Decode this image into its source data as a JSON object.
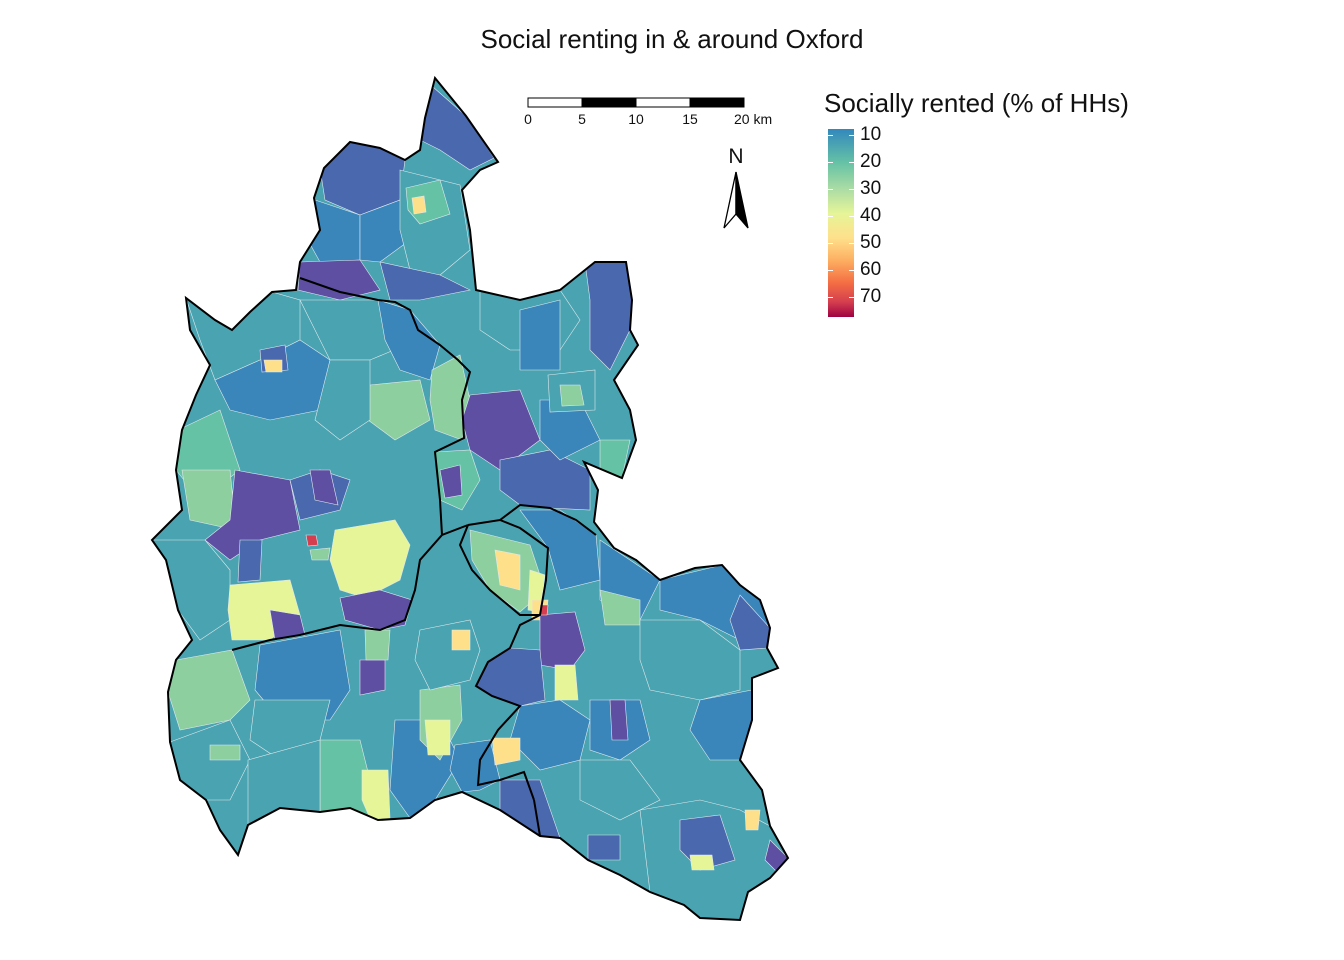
{
  "title": "Social renting in & around Oxford",
  "legend": {
    "title": "Socially rented (% of HHs)",
    "breaks": [
      "10",
      "20",
      "30",
      "40",
      "50",
      "60",
      "70"
    ],
    "palette": [
      "#3288bd",
      "#66c2a5",
      "#abdda4",
      "#e6f598",
      "#fee08b",
      "#fdae61",
      "#f46d43",
      "#d53e4f",
      "#9e0142"
    ]
  },
  "scale_bar": {
    "labels": [
      "0",
      "5",
      "10",
      "15",
      "20 km"
    ]
  },
  "north_arrow": {
    "label": "N",
    "icon": "north-arrow-icon"
  },
  "map_colors": {
    "dark_purple": "#5e4fa2",
    "dark_blue": "#4a68ad",
    "blue": "#3a86ba",
    "teal": "#4aa3b0",
    "green_teal": "#66c2a5",
    "light_green": "#8ecfa0",
    "yellow_green": "#e6f598",
    "pale_yellow": "#fee08b",
    "border": "#000000"
  }
}
